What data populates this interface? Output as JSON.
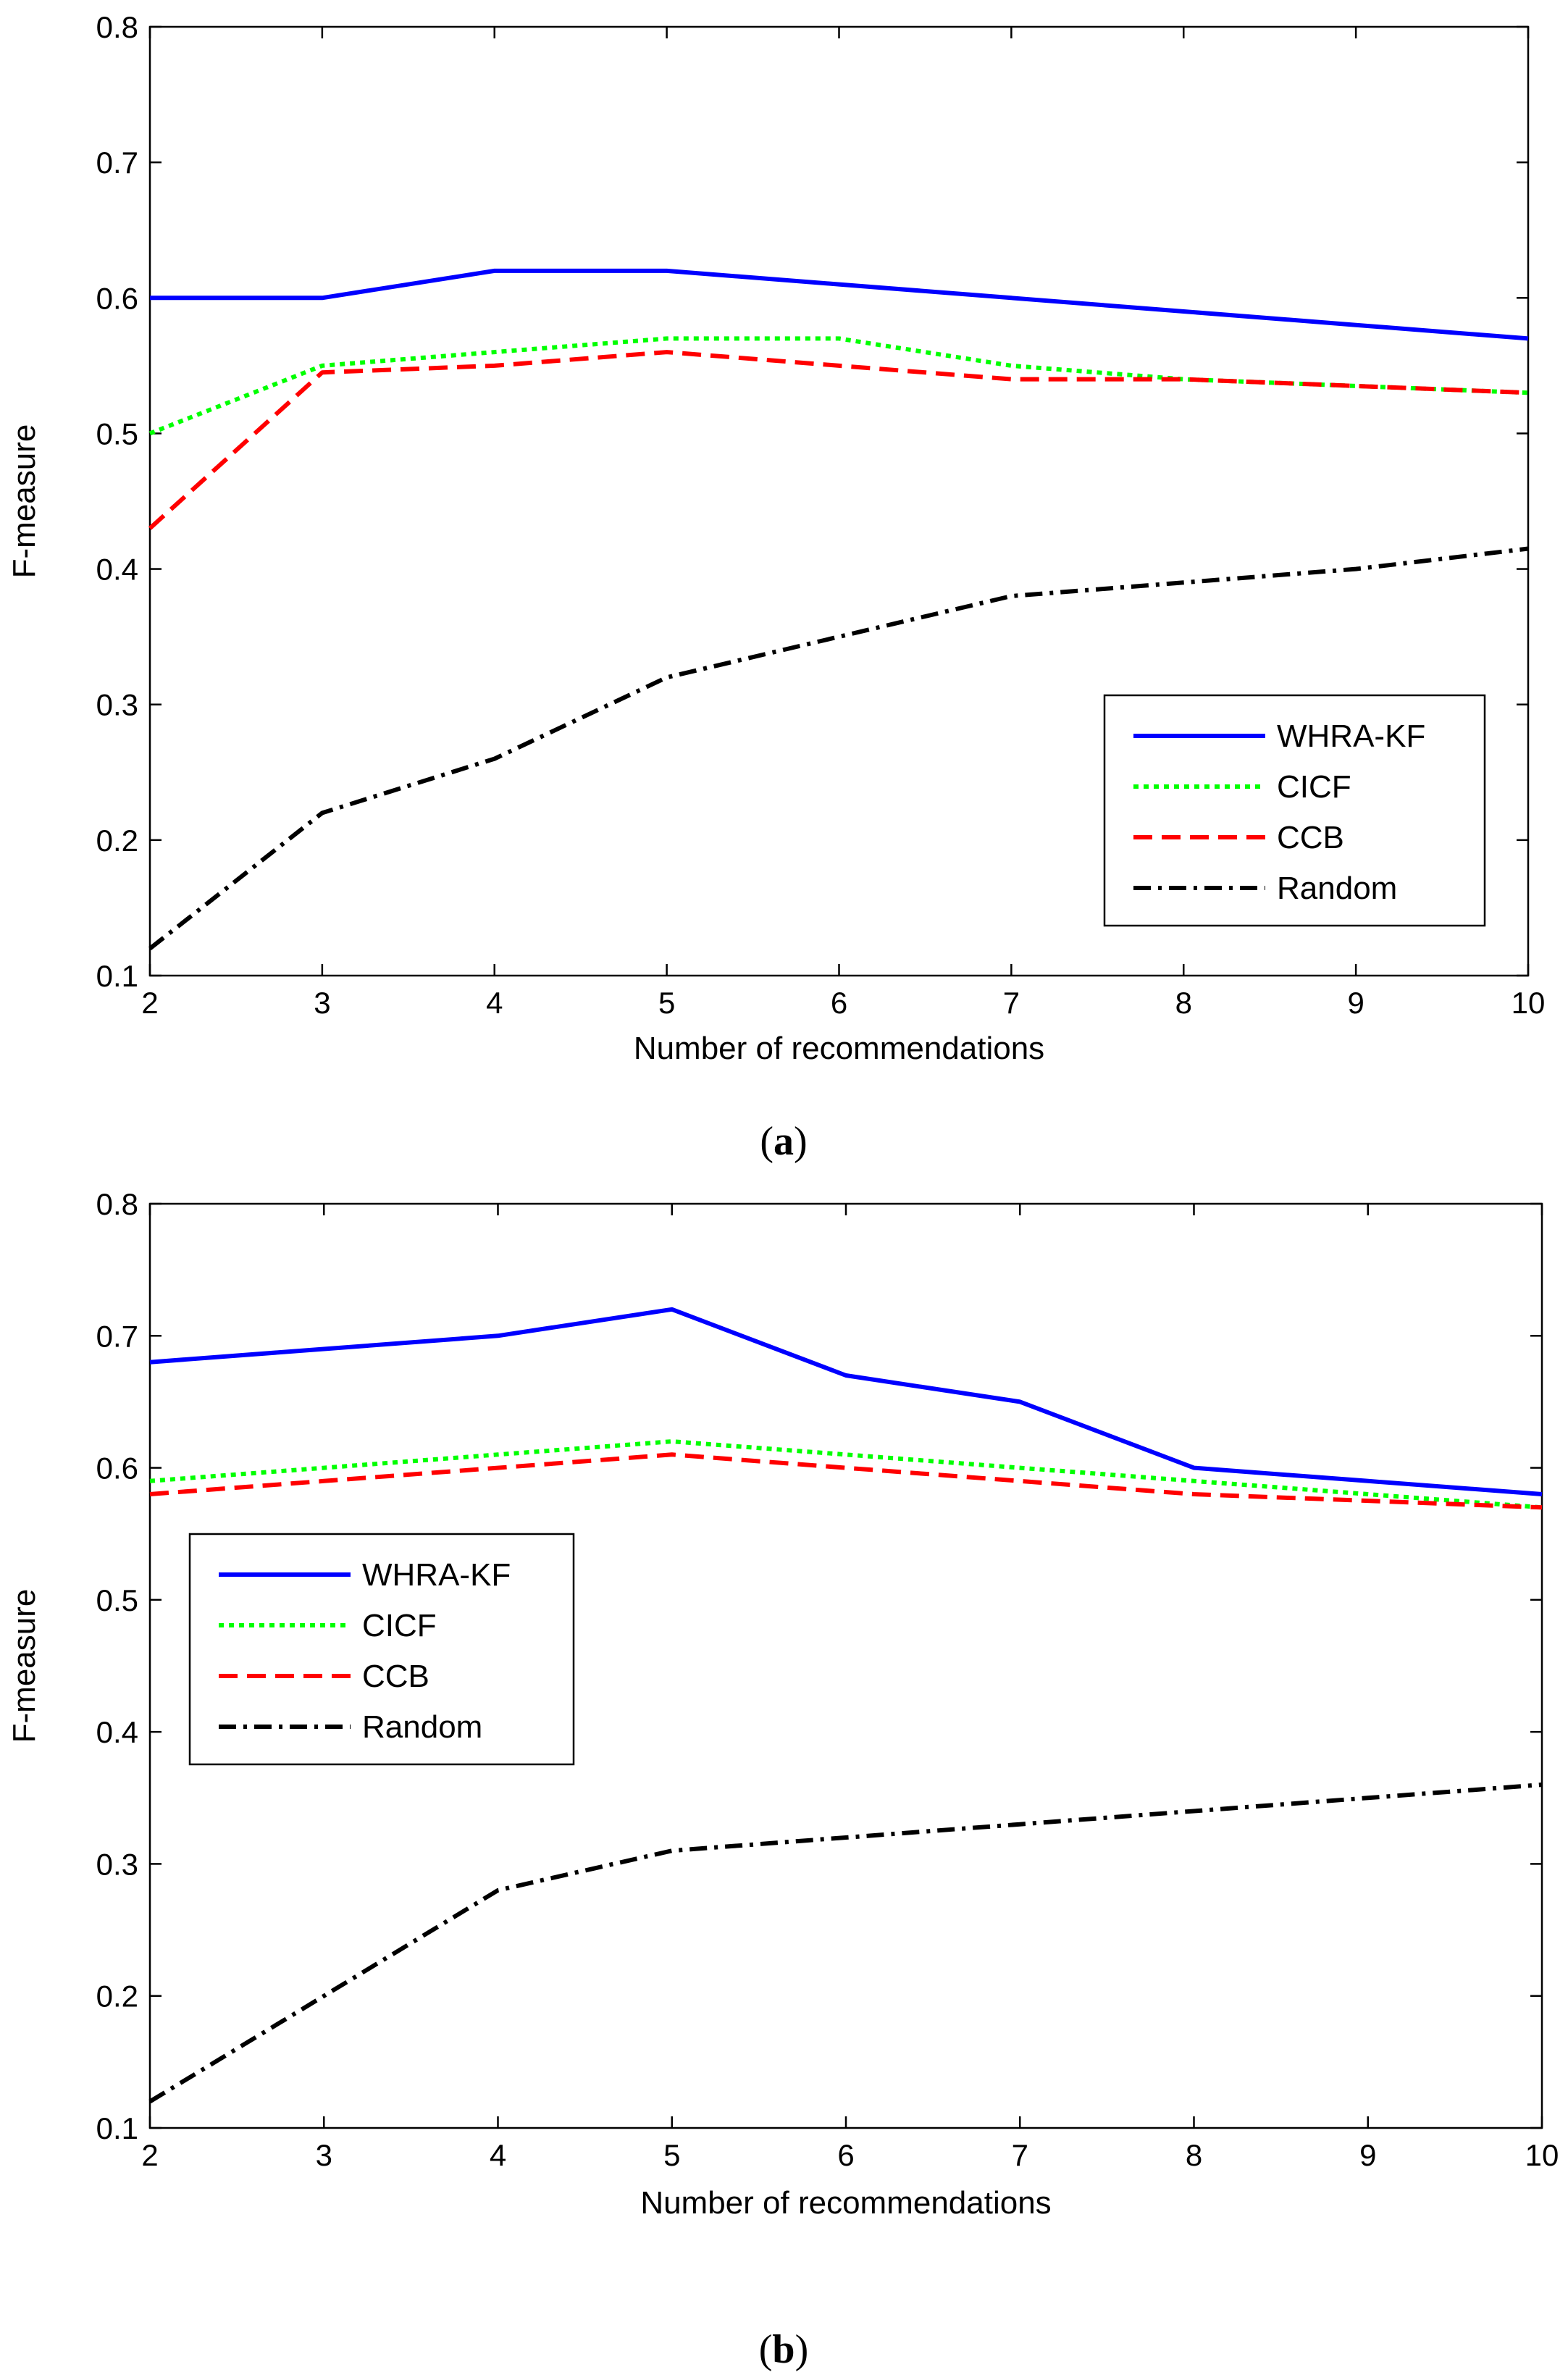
{
  "chart_data": [
    {
      "type": "line",
      "panel_label": "a",
      "xlabel": "Number of recommendations",
      "ylabel": "F-measure",
      "xlim": [
        2,
        10
      ],
      "ylim": [
        0.1,
        0.8
      ],
      "x_ticks": [
        2,
        3,
        4,
        5,
        6,
        7,
        8,
        9,
        10
      ],
      "y_ticks": [
        0.1,
        0.2,
        0.3,
        0.4,
        0.5,
        0.6,
        0.7,
        0.8
      ],
      "x_tick_labels": [
        "2",
        "3",
        "4",
        "5",
        "6",
        "7",
        "8",
        "9",
        "10"
      ],
      "y_tick_labels": [
        "0.1",
        "0.2",
        "0.3",
        "0.4",
        "0.5",
        "0.6",
        "0.7",
        "0.8"
      ],
      "x": [
        2,
        3,
        4,
        5,
        6,
        7,
        8,
        9,
        10
      ],
      "legend_position": "lower-right",
      "series": [
        {
          "name": "WHRA-KF",
          "color": "#0000ff",
          "style": "solid",
          "values": [
            0.6,
            0.6,
            0.62,
            0.62,
            0.61,
            0.6,
            0.59,
            0.58,
            0.57
          ]
        },
        {
          "name": "CICF",
          "color": "#00ff00",
          "style": "dotted",
          "values": [
            0.5,
            0.55,
            0.56,
            0.57,
            0.57,
            0.55,
            0.54,
            0.535,
            0.53
          ]
        },
        {
          "name": "CCB",
          "color": "#ff0000",
          "style": "dashed",
          "values": [
            0.43,
            0.545,
            0.55,
            0.56,
            0.55,
            0.54,
            0.54,
            0.535,
            0.53
          ]
        },
        {
          "name": "Random",
          "color": "#000000",
          "style": "dashdot",
          "values": [
            0.12,
            0.22,
            0.26,
            0.32,
            0.35,
            0.38,
            0.39,
            0.4,
            0.415
          ]
        }
      ]
    },
    {
      "type": "line",
      "panel_label": "b",
      "xlabel": "Number of recommendations",
      "ylabel": "F-measure",
      "xlim": [
        2,
        10
      ],
      "ylim": [
        0.1,
        0.8
      ],
      "x_ticks": [
        2,
        3,
        4,
        5,
        6,
        7,
        8,
        9,
        10
      ],
      "y_ticks": [
        0.1,
        0.2,
        0.3,
        0.4,
        0.5,
        0.6,
        0.7,
        0.8
      ],
      "x_tick_labels": [
        "2",
        "3",
        "4",
        "5",
        "6",
        "7",
        "8",
        "9",
        "10"
      ],
      "y_tick_labels": [
        "0.1",
        "0.2",
        "0.3",
        "0.4",
        "0.5",
        "0.6",
        "0.7",
        "0.8"
      ],
      "x": [
        2,
        3,
        4,
        5,
        6,
        7,
        8,
        9,
        10
      ],
      "legend_position": "center-left",
      "series": [
        {
          "name": "WHRA-KF",
          "color": "#0000ff",
          "style": "solid",
          "values": [
            0.68,
            0.69,
            0.7,
            0.72,
            0.67,
            0.65,
            0.6,
            0.59,
            0.58
          ]
        },
        {
          "name": "CICF",
          "color": "#00ff00",
          "style": "dotted",
          "values": [
            0.59,
            0.6,
            0.61,
            0.62,
            0.61,
            0.6,
            0.59,
            0.58,
            0.57
          ]
        },
        {
          "name": "CCB",
          "color": "#ff0000",
          "style": "dashed",
          "values": [
            0.58,
            0.59,
            0.6,
            0.61,
            0.6,
            0.59,
            0.58,
            0.575,
            0.57
          ]
        },
        {
          "name": "Random",
          "color": "#000000",
          "style": "dashdot",
          "values": [
            0.12,
            0.2,
            0.28,
            0.31,
            0.32,
            0.33,
            0.34,
            0.35,
            0.36
          ]
        }
      ]
    }
  ]
}
